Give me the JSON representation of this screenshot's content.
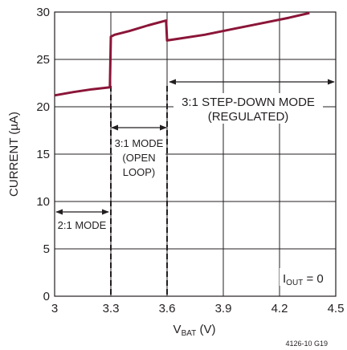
{
  "chart_data": {
    "type": "line",
    "xlabel_main": "V",
    "xlabel_sub": "BAT",
    "xlabel_unit": " (V)",
    "ylabel": "CURRENT (µA)",
    "xlim": [
      3,
      4.5
    ],
    "ylim": [
      0,
      30
    ],
    "x_ticks": [
      "3",
      "3.3",
      "3.6",
      "3.9",
      "4.2",
      "4.5"
    ],
    "y_ticks": [
      "0",
      "5",
      "10",
      "15",
      "20",
      "25",
      "30"
    ],
    "grid": true,
    "series": [
      {
        "color": "#8b1538",
        "x": [
          3.0,
          3.1,
          3.2,
          3.295,
          3.3,
          3.32,
          3.4,
          3.5,
          3.595,
          3.6,
          3.65,
          3.8,
          3.95,
          4.1,
          4.25,
          4.36
        ],
        "y": [
          21.2,
          21.55,
          21.85,
          22.05,
          27.4,
          27.6,
          28.0,
          28.6,
          29.1,
          27.0,
          27.15,
          27.6,
          28.2,
          28.8,
          29.4,
          29.9
        ]
      }
    ],
    "dividers_x": [
      3.3,
      3.6
    ],
    "annotations": {
      "mode_2_1": "2:1 MODE",
      "mode_3_1_line1": "3:1 MODE",
      "mode_3_1_line2": "(OPEN",
      "mode_3_1_line3": "LOOP)",
      "mode_stepdown_line1": "3:1 STEP-DOWN MODE",
      "mode_stepdown_line2": "(REGULATED)",
      "iout_main": "I",
      "iout_sub": "OUT",
      "iout_value": " = 0"
    },
    "figure_code": "4126-10 G19"
  }
}
